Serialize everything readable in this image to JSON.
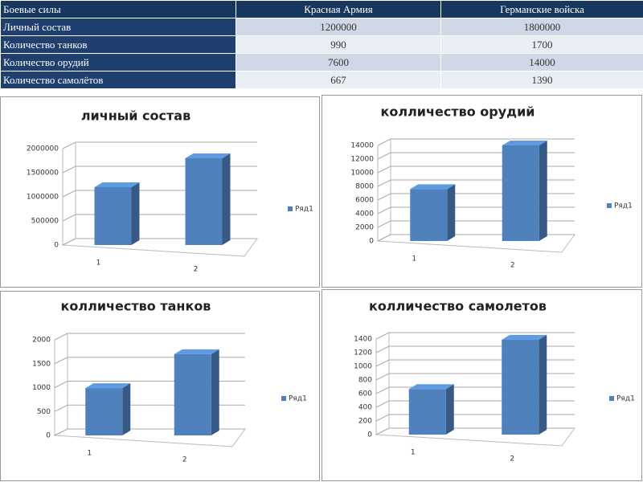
{
  "table": {
    "header": [
      "Боевые силы",
      "Красная Армия",
      "Германские войска"
    ],
    "rows": [
      [
        "Личный состав",
        "1200000",
        "1800000"
      ],
      [
        "Количество танков",
        "990",
        "1700"
      ],
      [
        "Количество орудий",
        "7600",
        "14000"
      ],
      [
        "Количество самолётов",
        "667",
        "1390"
      ]
    ]
  },
  "chart_data": [
    {
      "type": "bar",
      "title": "личный состав",
      "categories": [
        "1",
        "2"
      ],
      "series": [
        {
          "name": "Ряд1",
          "color": "#4f81bd",
          "values": [
            1200000,
            1800000
          ]
        }
      ],
      "ylim": [
        0,
        2000000
      ],
      "yticks": [
        0,
        500000,
        1000000,
        1500000,
        2000000
      ],
      "grid": true,
      "legend": "right"
    },
    {
      "type": "bar",
      "title": "колличество орудий",
      "categories": [
        "1",
        "2"
      ],
      "series": [
        {
          "name": "Ряд1",
          "color": "#4f81bd",
          "values": [
            7600,
            14000
          ]
        }
      ],
      "ylim": [
        0,
        14000
      ],
      "yticks": [
        0,
        2000,
        4000,
        6000,
        8000,
        10000,
        12000,
        14000
      ],
      "grid": true,
      "legend": "right"
    },
    {
      "type": "bar",
      "title": "колличество танков",
      "categories": [
        "1",
        "2"
      ],
      "series": [
        {
          "name": "Ряд1",
          "color": "#4f81bd",
          "values": [
            990,
            1700
          ]
        }
      ],
      "ylim": [
        0,
        2000
      ],
      "yticks": [
        0,
        500,
        1000,
        1500,
        2000
      ],
      "grid": true,
      "legend": "right"
    },
    {
      "type": "bar",
      "title": "колличество самолетов",
      "categories": [
        "1",
        "2"
      ],
      "series": [
        {
          "name": "Ряд1",
          "color": "#4f81bd",
          "values": [
            667,
            1390
          ]
        }
      ],
      "ylim": [
        0,
        1400
      ],
      "yticks": [
        0,
        200,
        400,
        600,
        800,
        1000,
        1200,
        1400
      ],
      "grid": true,
      "legend": "right"
    }
  ]
}
